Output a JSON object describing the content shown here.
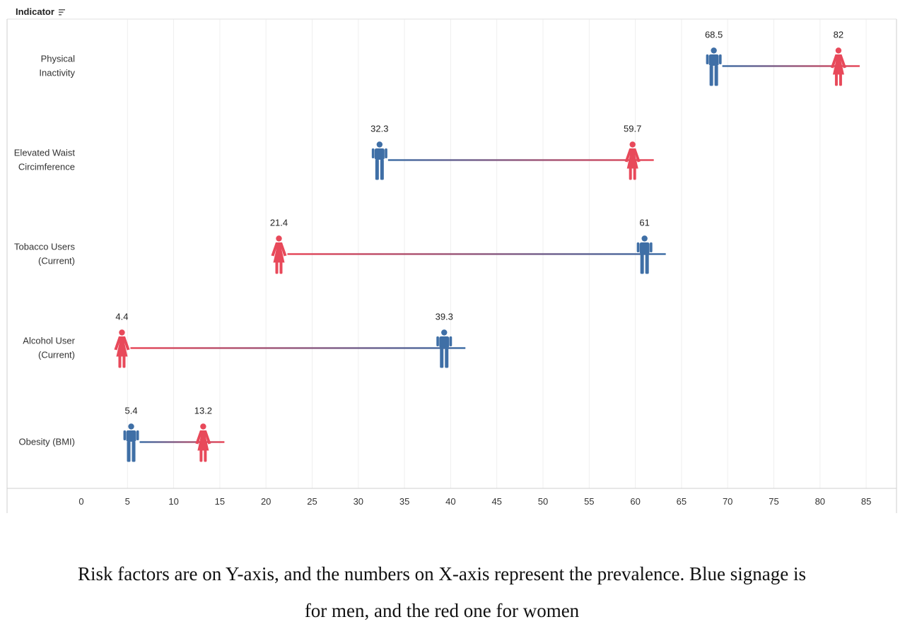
{
  "header": {
    "field_label": "Indicator",
    "sort_icon": "sort-icon"
  },
  "chart_data": {
    "type": "dumbbell",
    "title": "",
    "xlabel": "",
    "ylabel": "",
    "xlim": [
      0,
      85
    ],
    "x_ticks": [
      0,
      5,
      10,
      15,
      20,
      25,
      30,
      35,
      40,
      45,
      50,
      55,
      60,
      65,
      70,
      75,
      80,
      85
    ],
    "grid": "vertical",
    "categories": [
      [
        "Physical",
        "Inactivity"
      ],
      [
        "Elevated Waist",
        "Circimference"
      ],
      [
        "Tobacco Users",
        "(Current)"
      ],
      [
        "Alcohol User",
        "(Current)"
      ],
      [
        "Obesity (BMI)"
      ]
    ],
    "series": [
      {
        "key": "men",
        "icon": "male-icon",
        "color": "#3f6fa6",
        "values": [
          68.5,
          32.3,
          61,
          39.3,
          5.4
        ],
        "labels": [
          "68.5",
          "32.3",
          "61",
          "39.3",
          "5.4"
        ]
      },
      {
        "key": "women",
        "icon": "female-icon",
        "color": "#e8495a",
        "values": [
          82,
          59.7,
          21.4,
          4.4,
          13.2
        ],
        "labels": [
          "82",
          "59.7",
          "21.4",
          "4.4",
          "13.2"
        ]
      }
    ]
  },
  "caption": {
    "line1": "Risk factors are on Y-axis, and the numbers on  X-axis represent  the prevalence.  Blue  signage is",
    "line2": "for men, and the red one for women"
  }
}
